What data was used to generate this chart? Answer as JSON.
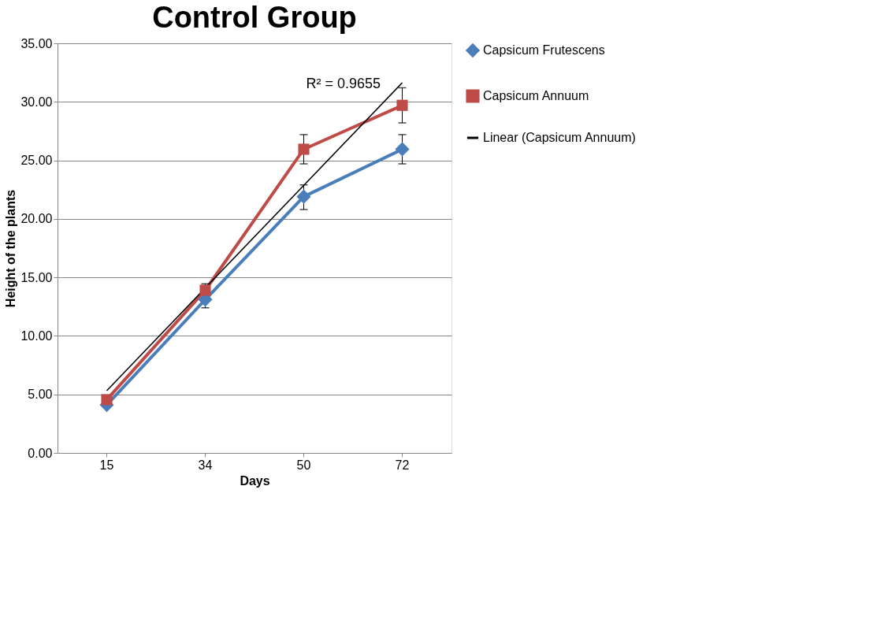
{
  "chart_data": {
    "type": "line",
    "title": "Control Group",
    "xlabel": "Days",
    "ylabel": "Height of the plants",
    "categories": [
      "15",
      "34",
      "50",
      "72"
    ],
    "series": [
      {
        "name": "Capsicum Frutescens",
        "color": "#4a7ebb",
        "marker": "diamond",
        "values": [
          4.1,
          13.1,
          21.9,
          25.95
        ],
        "errors": [
          null,
          [
            12.4,
            13.6
          ],
          [
            20.8,
            22.9
          ],
          [
            24.7,
            27.2
          ]
        ]
      },
      {
        "name": "Capsicum Annuum",
        "color": "#be4b48",
        "marker": "square",
        "values": [
          4.55,
          13.9,
          25.95,
          29.7
        ],
        "errors": [
          null,
          [
            13.3,
            14.45
          ],
          [
            24.7,
            27.2
          ],
          [
            28.2,
            31.2
          ]
        ]
      },
      {
        "name": "Linear (Capsicum Annuum)",
        "type": "line",
        "color": "#000000",
        "marker": "none",
        "x": [
          "15",
          "72"
        ],
        "values": [
          5.32,
          31.63
        ]
      }
    ],
    "ylim": [
      0,
      35
    ],
    "yticks": [
      {
        "value": 0,
        "label": "0.00"
      },
      {
        "value": 5,
        "label": "5.00"
      },
      {
        "value": 10,
        "label": "10.00"
      },
      {
        "value": 15,
        "label": "15.00"
      },
      {
        "value": 20,
        "label": "20.00"
      },
      {
        "value": 25,
        "label": "25.00"
      },
      {
        "value": 30,
        "label": "30.00"
      },
      {
        "value": 35,
        "label": "35.00"
      }
    ],
    "grid": "y",
    "legend": "right",
    "annotations": [
      "R² = 0.9655"
    ]
  }
}
